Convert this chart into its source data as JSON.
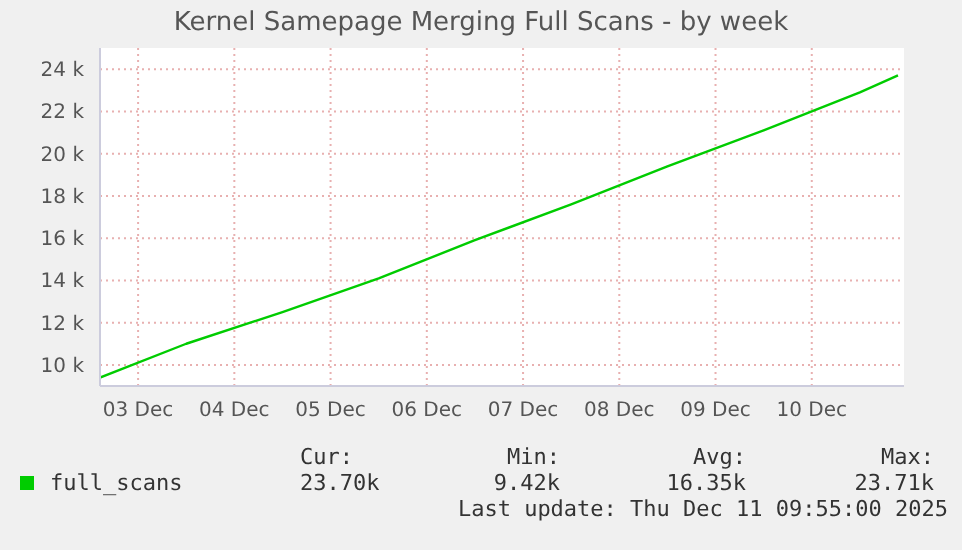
{
  "chart_data": {
    "type": "line",
    "title": "Kernel Samepage Merging Full Scans - by week",
    "x": [
      "2025-12-03T02:30",
      "2025-12-04T00:00",
      "2025-12-05T00:00",
      "2025-12-06T00:00",
      "2025-12-07T00:00",
      "2025-12-08T00:00",
      "2025-12-09T00:00",
      "2025-12-10T00:00",
      "2025-12-11T00:00",
      "2025-12-11T09:30"
    ],
    "series": [
      {
        "name": "full_scans",
        "color": "#00cc00",
        "values": [
          9400,
          11000,
          12500,
          14100,
          15900,
          17600,
          19400,
          21100,
          22900,
          23700
        ]
      }
    ],
    "xlim": [
      "2025-12-03T02:30",
      "2025-12-11T11:00"
    ],
    "xticks": [
      {
        "value": "2025-12-03T12:00",
        "label": "03 Dec"
      },
      {
        "value": "2025-12-04T12:00",
        "label": "04 Dec"
      },
      {
        "value": "2025-12-05T12:00",
        "label": "05 Dec"
      },
      {
        "value": "2025-12-06T12:00",
        "label": "06 Dec"
      },
      {
        "value": "2025-12-07T12:00",
        "label": "07 Dec"
      },
      {
        "value": "2025-12-08T12:00",
        "label": "08 Dec"
      },
      {
        "value": "2025-12-09T12:00",
        "label": "09 Dec"
      },
      {
        "value": "2025-12-10T12:00",
        "label": "10 Dec"
      }
    ],
    "ylim": [
      9000,
      25000
    ],
    "yticks": [
      {
        "value": 10000,
        "label": "10 k"
      },
      {
        "value": 12000,
        "label": "12 k"
      },
      {
        "value": 14000,
        "label": "14 k"
      },
      {
        "value": 16000,
        "label": "16 k"
      },
      {
        "value": 18000,
        "label": "18 k"
      },
      {
        "value": 20000,
        "label": "20 k"
      },
      {
        "value": 22000,
        "label": "22 k"
      },
      {
        "value": 24000,
        "label": "24 k"
      }
    ],
    "grid": true,
    "legend": "bottom",
    "marker": "none",
    "line_style": "solid",
    "annotations": [
      "Cur:",
      "23.70k",
      "Min:",
      "9.42k",
      "Avg:",
      "16.35k",
      "Max:",
      "23.71k",
      "Last update: Thu Dec 11 09:55:00 2025"
    ]
  }
}
